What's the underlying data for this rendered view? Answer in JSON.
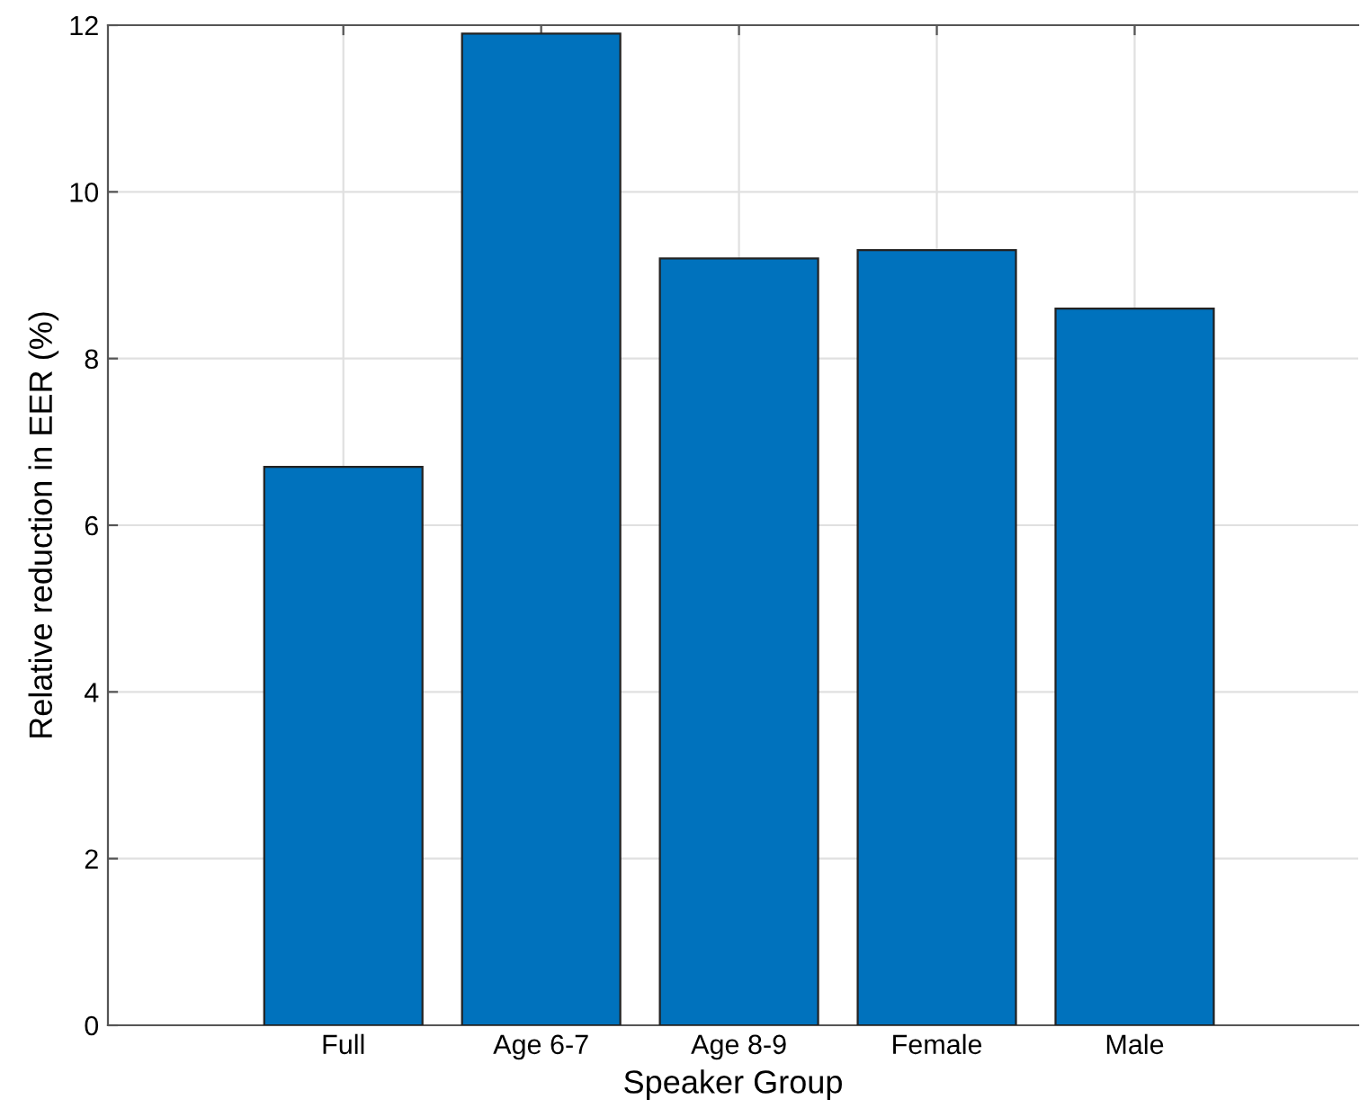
{
  "chart_data": {
    "type": "bar",
    "xlabel": "Speaker Group",
    "ylabel": "Relative reduction in EER (%)",
    "categories": [
      "Full",
      "Age 6-7",
      "Age 8-9",
      "Female",
      "Male"
    ],
    "values": [
      6.7,
      11.9,
      9.2,
      9.3,
      8.6
    ],
    "color": "#0072bd",
    "ylim": [
      0,
      12
    ],
    "yticks": [
      0,
      2,
      4,
      6,
      8,
      10,
      12
    ],
    "grid": true
  }
}
